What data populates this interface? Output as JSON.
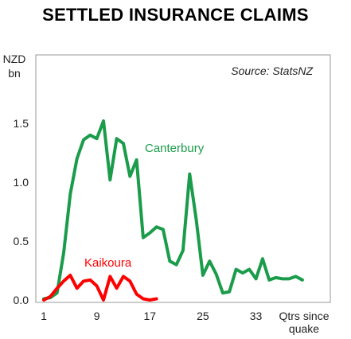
{
  "chart_data": {
    "type": "line",
    "title": "SETTLED INSURANCE CLAIMS",
    "ylabel": [
      "NZD",
      "bn"
    ],
    "xlabel": [
      "Qtrs since",
      "quake"
    ],
    "source": "Source: StatsNZ",
    "xlim": [
      1,
      42
    ],
    "ylim": [
      0,
      2.0
    ],
    "x_ticks": [
      1,
      9,
      17,
      25,
      33
    ],
    "y_ticks": [
      0.0,
      0.5,
      1.0,
      1.5
    ],
    "y_tick_labels": [
      "0.0",
      "0.5",
      "1.0",
      "1.5"
    ],
    "grid": false,
    "series": [
      {
        "name": "Canterbury",
        "color": "#1a9c4a",
        "x": [
          1,
          2,
          3,
          4,
          5,
          6,
          7,
          8,
          9,
          10,
          11,
          12,
          13,
          14,
          15,
          16,
          17,
          18,
          19,
          20,
          21,
          22,
          23,
          24,
          25,
          26,
          27,
          28,
          29,
          30,
          31,
          32,
          33,
          34,
          35,
          36,
          37,
          38,
          39,
          40
        ],
        "values": [
          0.01,
          0.02,
          0.06,
          0.4,
          0.9,
          1.2,
          1.36,
          1.4,
          1.37,
          1.52,
          1.02,
          1.37,
          1.33,
          1.05,
          1.19,
          0.53,
          0.57,
          0.62,
          0.6,
          0.33,
          0.3,
          0.42,
          1.07,
          0.68,
          0.21,
          0.33,
          0.22,
          0.06,
          0.07,
          0.26,
          0.23,
          0.26,
          0.18,
          0.35,
          0.17,
          0.19,
          0.18,
          0.18,
          0.2,
          0.17
        ]
      },
      {
        "name": "Kaikoura",
        "color": "#ff0000",
        "x": [
          1,
          2,
          3,
          4,
          5,
          6,
          7,
          8,
          9,
          10,
          11,
          12,
          13,
          14,
          15,
          16,
          17,
          18
        ],
        "values": [
          0.0,
          0.03,
          0.1,
          0.16,
          0.21,
          0.1,
          0.16,
          0.17,
          0.12,
          0.0,
          0.2,
          0.1,
          0.2,
          0.16,
          0.05,
          0.01,
          0.0,
          0.01
        ]
      }
    ]
  }
}
